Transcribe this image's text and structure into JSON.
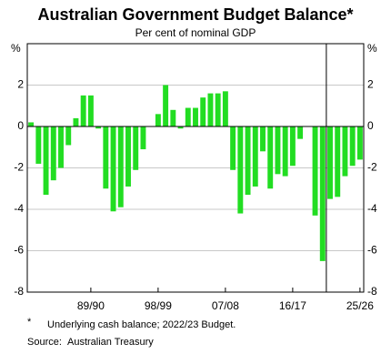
{
  "chart_data": {
    "type": "bar",
    "title": "Australian Government Budget Balance*",
    "subtitle": "Per cent of nominal GDP",
    "y_label": "%",
    "categories": [
      null,
      null,
      null,
      null,
      null,
      null,
      null,
      null,
      "89/90",
      null,
      null,
      null,
      null,
      null,
      null,
      null,
      null,
      "98/99",
      null,
      null,
      null,
      null,
      null,
      null,
      null,
      null,
      "07/08",
      null,
      null,
      null,
      null,
      null,
      null,
      null,
      null,
      "16/17",
      null,
      null,
      null,
      null,
      null,
      null,
      null,
      null,
      "25/26"
    ],
    "values": [
      0.2,
      -1.8,
      -3.3,
      -2.6,
      -2.0,
      -0.9,
      0.4,
      1.5,
      1.5,
      -0.1,
      -3.0,
      -4.1,
      -3.9,
      -2.9,
      -2.1,
      -1.1,
      0.0,
      0.6,
      2.0,
      0.8,
      -0.1,
      0.9,
      0.9,
      1.4,
      1.6,
      1.6,
      1.7,
      -2.1,
      -4.2,
      -3.3,
      -2.9,
      -1.2,
      -3.0,
      -2.3,
      -2.4,
      -1.9,
      -0.6,
      0.0,
      -4.3,
      -6.5,
      -3.5,
      -3.4,
      -2.4,
      -1.9,
      -1.6
    ],
    "color": "#22dd22",
    "ylim": [
      -8,
      4
    ],
    "yticks": [
      -8,
      -6,
      -4,
      -2,
      0,
      2
    ],
    "grid": true,
    "notes": [
      {
        "marker": "*",
        "text": "Underlying cash balance; 2022/23 Budget."
      },
      {
        "marker": "Source:",
        "text": "Australian Treasury"
      }
    ]
  }
}
